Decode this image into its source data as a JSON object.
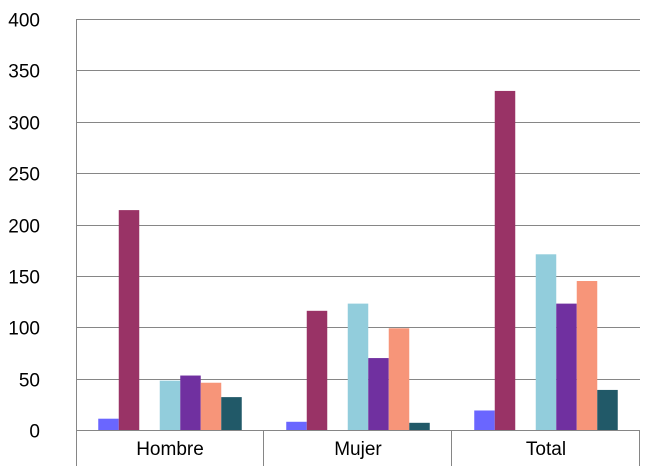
{
  "chart_data": {
    "type": "bar",
    "categories": [
      "Hombre",
      "Mujer",
      "Total"
    ],
    "series": [
      {
        "color": "#6a66ff",
        "values": [
          11,
          8,
          19
        ]
      },
      {
        "color": "#993366",
        "values": [
          214,
          116,
          330
        ]
      },
      {
        "color": "#ffffff",
        "values": [
          0,
          0,
          0
        ]
      },
      {
        "color": "#92cddc",
        "values": [
          48,
          123,
          171
        ]
      },
      {
        "color": "#7030a0",
        "values": [
          53,
          70,
          123
        ]
      },
      {
        "color": "#f79579",
        "values": [
          46,
          99,
          145
        ]
      },
      {
        "color": "#215968",
        "values": [
          32,
          7,
          39
        ]
      }
    ],
    "yticks": [
      0,
      50,
      100,
      150,
      200,
      250,
      300,
      350,
      400
    ],
    "ylim": [
      0,
      400
    ],
    "grid": true,
    "legend": "none"
  }
}
